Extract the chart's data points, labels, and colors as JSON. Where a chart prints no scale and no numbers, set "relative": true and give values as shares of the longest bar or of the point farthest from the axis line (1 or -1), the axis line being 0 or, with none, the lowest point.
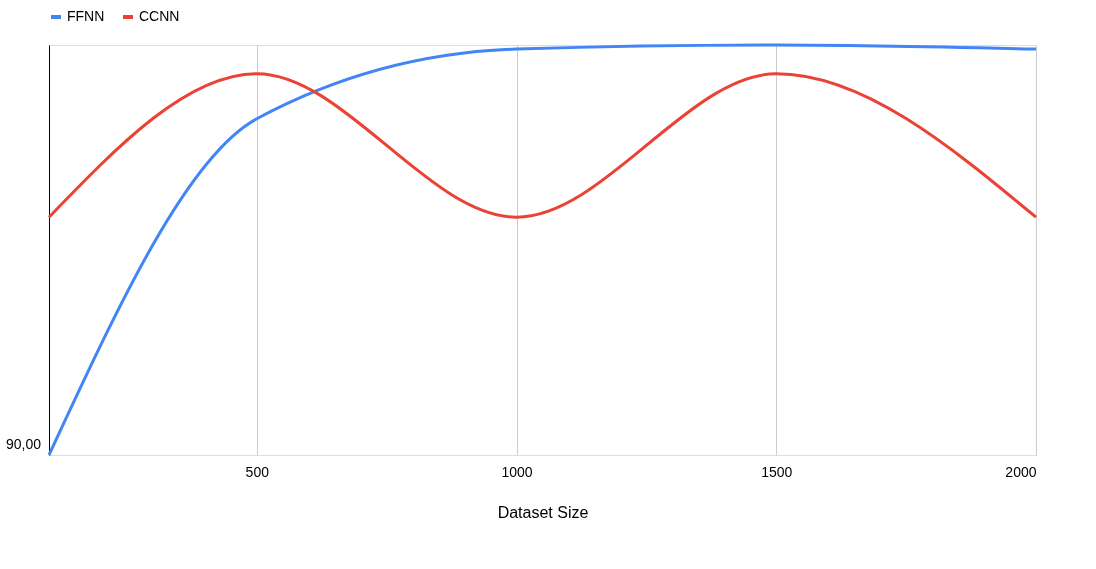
{
  "chart_data": {
    "type": "line",
    "relative": true,
    "xlabel": "Dataset Size",
    "x": [
      100,
      500,
      1000,
      1500,
      2000
    ],
    "xlim": [
      100,
      2000
    ],
    "xticks": [
      500,
      1000,
      1500,
      2000
    ],
    "series": [
      {
        "name": "FFNN",
        "color": "#4285f4",
        "values": [
          0,
          0.82,
          0.99,
          1,
          0.99
        ]
      },
      {
        "name": "CCNN",
        "color": "#ea4335",
        "values": [
          0.58,
          0.93,
          0.58,
          0.93,
          0.58
        ]
      }
    ],
    "annotations": [
      "90,00"
    ],
    "grid": "x",
    "legend": "top",
    "marker": "none",
    "line_style": "solid"
  }
}
